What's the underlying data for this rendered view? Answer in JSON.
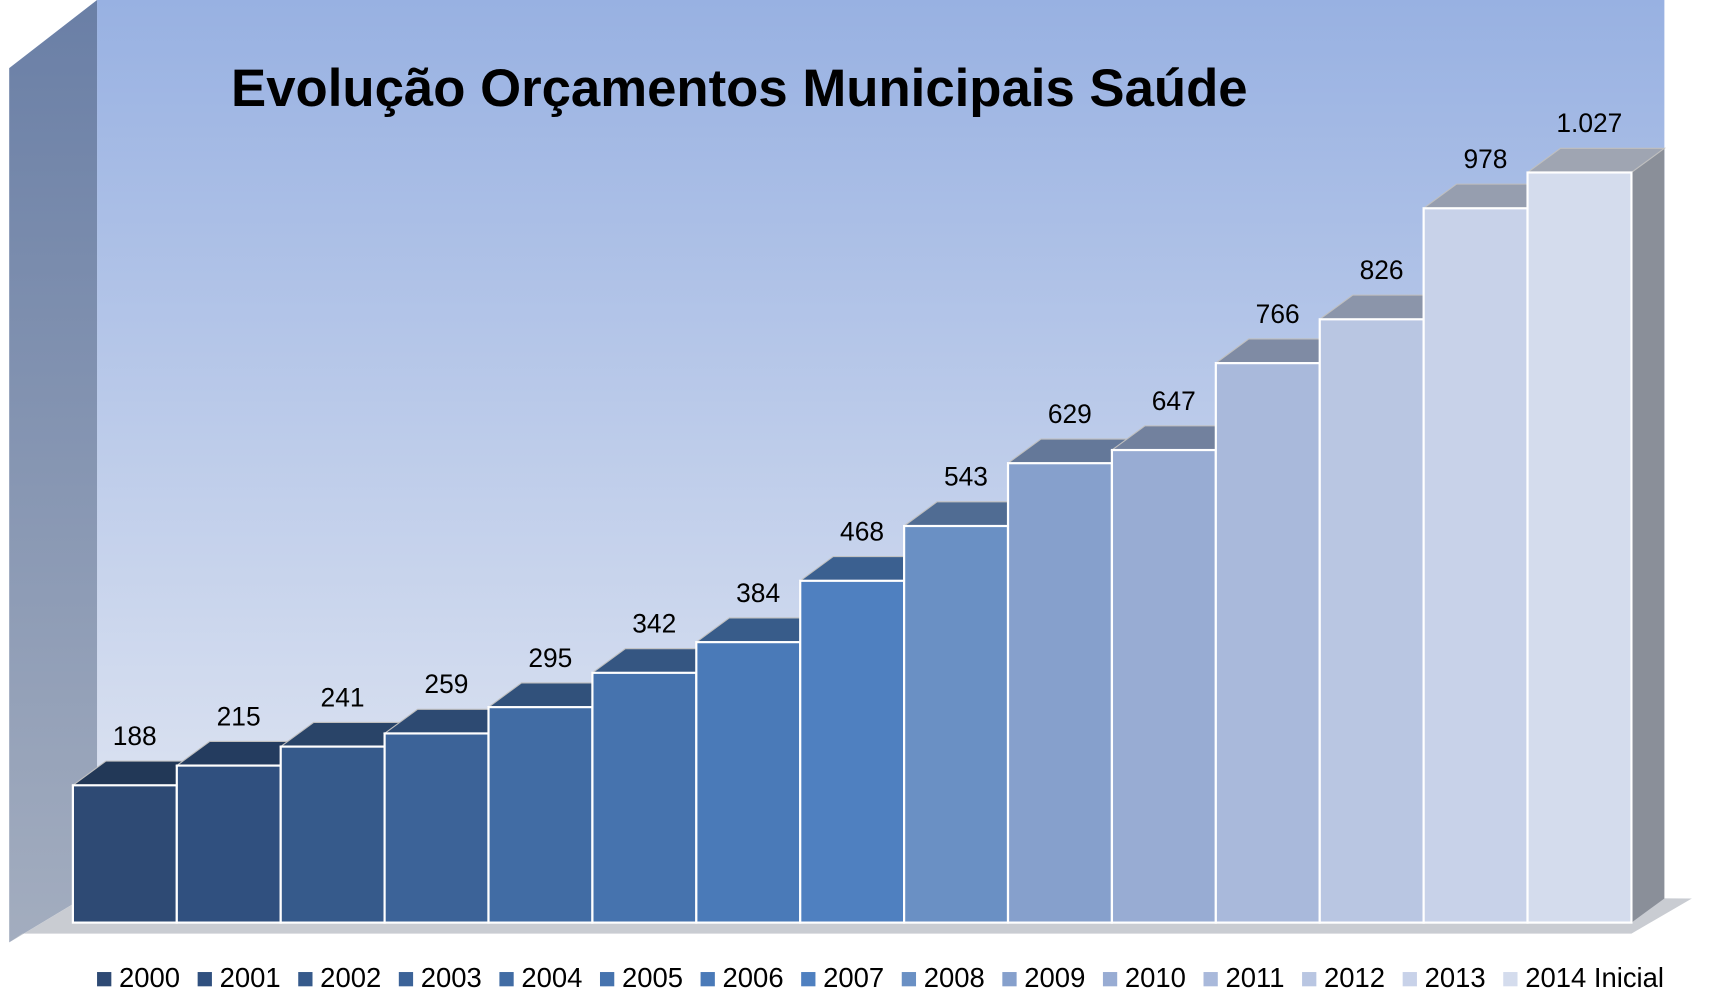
{
  "chart_data": {
    "type": "bar3d",
    "title": "Evolução Orçamentos Municipais Saúde",
    "categories": [
      "2000",
      "2001",
      "2002",
      "2003",
      "2004",
      "2005",
      "2006",
      "2007",
      "2008",
      "2009",
      "2010",
      "2011",
      "2012",
      "2013",
      "2014 Inicial"
    ],
    "values": [
      188,
      215,
      241,
      259,
      295,
      342,
      384,
      468,
      543,
      629,
      647,
      766,
      826,
      978,
      1027
    ],
    "value_labels": [
      "188",
      "215",
      "241",
      "259",
      "295",
      "342",
      "384",
      "468",
      "543",
      "629",
      "647",
      "766",
      "826",
      "978",
      "1.027"
    ],
    "colors": [
      "#2e4a74",
      "#30507f",
      "#365a8b",
      "#3c6398",
      "#416ca4",
      "#4673ae",
      "#4a7ab8",
      "#4f80c0",
      "#6a90c4",
      "#86a0cc",
      "#98acd3",
      "#a9b9db",
      "#b9c6e2",
      "#c8d2e9",
      "#d4dced"
    ],
    "legend": "bottom"
  }
}
